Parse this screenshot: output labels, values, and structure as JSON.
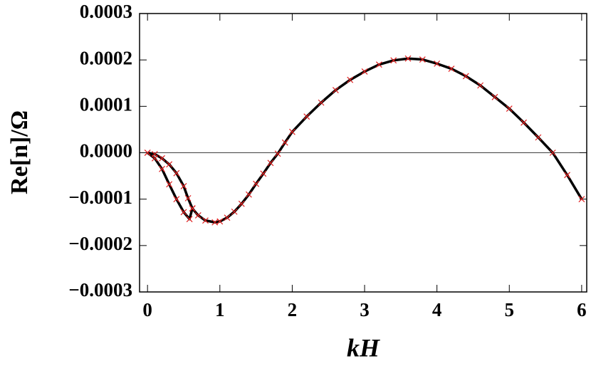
{
  "chart_data": {
    "type": "line",
    "x_label": "kH",
    "y_label": "Re[n]/Ω",
    "xlim": [
      -0.11,
      6.07
    ],
    "ylim": [
      -0.0003,
      0.0003
    ],
    "xticks": [
      0,
      1,
      2,
      3,
      4,
      5,
      6
    ],
    "yticks": [
      {
        "value": -0.0003,
        "label": "−0.0003"
      },
      {
        "value": -0.0002,
        "label": "−0.0002"
      },
      {
        "value": -0.0001,
        "label": "−0.0001"
      },
      {
        "value": 0,
        "label": "0.0000"
      },
      {
        "value": 0.0001,
        "label": "0.0001"
      },
      {
        "value": 0.0002,
        "label": "0.0002"
      },
      {
        "value": 0.0003,
        "label": "0.0003"
      }
    ],
    "line_color": "#000000",
    "marker_color": "#e02020",
    "series": [
      {
        "x": [
          0,
          0.1,
          0.2,
          0.3,
          0.4,
          0.5,
          0.56,
          0.62
        ],
        "values": [
          0,
          -3e-06,
          -1.2e-05,
          -2.5e-05,
          -4.4e-05,
          -7.2e-05,
          -9.8e-05,
          -0.00012
        ]
      },
      {
        "x": [
          0,
          0.1,
          0.2,
          0.3,
          0.4,
          0.5,
          0.58,
          0.62
        ],
        "values": [
          0,
          -1.2e-05,
          -3.5e-05,
          -6.8e-05,
          -0.0001,
          -0.000128,
          -0.000143,
          -0.00012
        ]
      },
      {
        "x": [
          0.62,
          0.7,
          0.8,
          0.93,
          1.0,
          1.1,
          1.2,
          1.3,
          1.4,
          1.5,
          1.6,
          1.7,
          1.8,
          1.9,
          2.0,
          2.2,
          2.4,
          2.6,
          2.8,
          3.0,
          3.2,
          3.4,
          3.6,
          3.8,
          4.0,
          4.2,
          4.4,
          4.6,
          4.8,
          5.0,
          5.2,
          5.4,
          5.6,
          5.8,
          6.0
        ],
        "values": [
          -0.00012,
          -0.000135,
          -0.000146,
          -0.00015,
          -0.000148,
          -0.00014,
          -0.000127,
          -0.00011,
          -9e-05,
          -6.7e-05,
          -4.5e-05,
          -2.2e-05,
          -2e-06,
          2.2e-05,
          4.5e-05,
          7.8e-05,
          0.000108,
          0.000135,
          0.000157,
          0.000175,
          0.00019,
          0.000199,
          0.000203,
          0.000201,
          0.000192,
          0.000181,
          0.000165,
          0.000145,
          0.00012,
          9.5e-05,
          6.5e-05,
          3.3e-05,
          0,
          -4.8e-05,
          -0.0001
        ]
      }
    ]
  }
}
